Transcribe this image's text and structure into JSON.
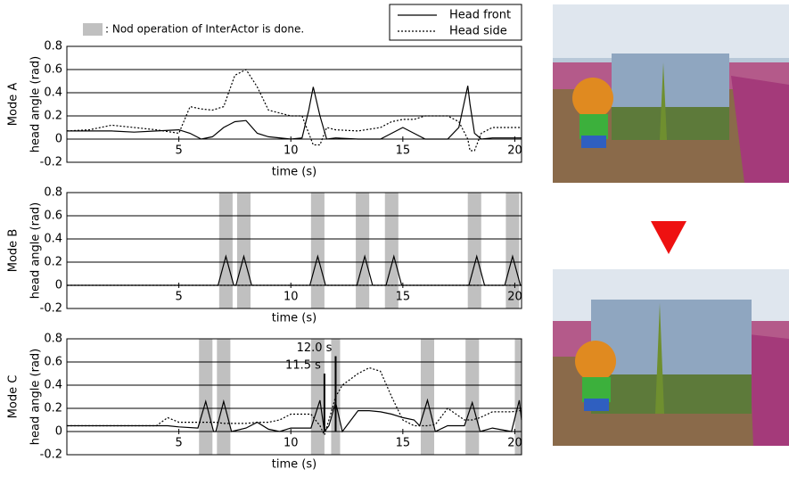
{
  "legend_note": ": Nod operation of InterActor is done.",
  "chart_data": [
    {
      "type": "line",
      "mode_label": "Mode A",
      "ylabel": "head angle (rad)",
      "xlabel": "time (s)",
      "xlim": [
        0,
        20.3
      ],
      "xticks": [
        5,
        10,
        15,
        20
      ],
      "ylim": [
        -0.2,
        0.8
      ],
      "yticks": [
        -0.2,
        0,
        0.2,
        0.4,
        0.6,
        0.8
      ],
      "x": [
        0,
        1,
        2,
        3,
        4,
        5,
        5.5,
        6,
        6.5,
        7,
        7.5,
        8,
        8.5,
        9,
        10,
        10.5,
        10.8,
        11,
        11.3,
        11.6,
        12,
        13,
        14,
        14.5,
        15,
        15.5,
        16,
        17,
        17.5,
        17.9,
        18,
        18.2,
        18.5,
        19,
        20,
        20.3
      ],
      "series": [
        {
          "name": "Head front",
          "color": "#000000",
          "dash": "solid",
          "values": [
            0.07,
            0.07,
            0.07,
            0.06,
            0.07,
            0.08,
            0.05,
            0.0,
            0.02,
            0.1,
            0.15,
            0.16,
            0.05,
            0.02,
            0.0,
            0.01,
            0.25,
            0.45,
            0.2,
            0.0,
            0.01,
            0.0,
            0.0,
            0.05,
            0.1,
            0.05,
            0.0,
            0.0,
            0.1,
            0.46,
            0.3,
            0.05,
            0.0,
            0.01,
            0.01,
            0.01
          ]
        },
        {
          "name": "Head side",
          "color": "#000000",
          "dash": "dotted",
          "values": [
            0.07,
            0.08,
            0.12,
            0.1,
            0.08,
            0.05,
            0.28,
            0.26,
            0.25,
            0.28,
            0.55,
            0.6,
            0.45,
            0.25,
            0.2,
            0.2,
            0.05,
            -0.05,
            -0.05,
            0.1,
            0.08,
            0.07,
            0.1,
            0.15,
            0.17,
            0.17,
            0.2,
            0.2,
            0.15,
            0.0,
            -0.1,
            -0.1,
            0.05,
            0.1,
            0.1,
            0.1
          ]
        }
      ]
    },
    {
      "type": "line",
      "mode_label": "Mode B",
      "ylabel": "head angle (rad)",
      "xlabel": "time (s)",
      "xlim": [
        0,
        20.3
      ],
      "xticks": [
        5,
        10,
        15,
        20
      ],
      "ylim": [
        -0.2,
        0.8
      ],
      "yticks": [
        -0.2,
        0,
        0.2,
        0.4,
        0.6,
        0.8
      ],
      "nod_intervals": [
        [
          6.8,
          7.4
        ],
        [
          7.6,
          8.2
        ],
        [
          10.9,
          11.5
        ],
        [
          12.9,
          13.5
        ],
        [
          14.2,
          14.8
        ],
        [
          17.9,
          18.5
        ],
        [
          19.6,
          20.2
        ]
      ],
      "x": [
        0,
        6.75,
        7.1,
        7.45,
        7.55,
        7.9,
        8.25,
        10.85,
        11.2,
        11.55,
        12.95,
        13.3,
        13.65,
        14.25,
        14.6,
        14.95,
        17.95,
        18.3,
        18.65,
        19.55,
        19.9,
        20.25,
        20.3
      ],
      "series": [
        {
          "name": "Head front",
          "color": "#000000",
          "dash": "solid",
          "values": [
            0,
            0,
            0.25,
            0,
            0,
            0.25,
            0,
            0,
            0.25,
            0,
            0,
            0.25,
            0,
            0,
            0.25,
            0,
            0,
            0.25,
            0,
            0,
            0.25,
            0,
            0
          ]
        },
        {
          "name": "Head side",
          "color": "#000000",
          "dash": "dotted",
          "values": [
            0,
            0,
            0,
            0,
            0,
            0,
            0,
            0,
            0,
            0,
            0,
            0,
            0,
            0,
            0,
            0,
            0,
            0,
            0,
            0,
            0,
            0,
            0
          ]
        }
      ]
    },
    {
      "type": "line",
      "mode_label": "Mode C",
      "ylabel": "head angle (rad)",
      "xlabel": "time (s)",
      "xlim": [
        0,
        20.3
      ],
      "xticks": [
        5,
        10,
        15,
        20
      ],
      "ylim": [
        -0.2,
        0.8
      ],
      "yticks": [
        -0.2,
        0,
        0.2,
        0.4,
        0.6,
        0.8
      ],
      "nod_intervals": [
        [
          5.9,
          6.5
        ],
        [
          6.7,
          7.3
        ],
        [
          10.9,
          11.5
        ],
        [
          11.8,
          12.2
        ],
        [
          15.8,
          16.4
        ],
        [
          17.8,
          18.4
        ],
        [
          20.0,
          20.3
        ]
      ],
      "annotations": [
        {
          "text": "12.0 s",
          "x": 12.0,
          "y": 0.65
        },
        {
          "text": "11.5 s",
          "x": 11.5,
          "y": 0.5
        }
      ],
      "x": [
        0,
        2,
        4,
        4.5,
        5,
        5.85,
        6.2,
        6.55,
        6.65,
        7.0,
        7.35,
        8,
        8.5,
        9,
        9.5,
        10,
        10.9,
        11.3,
        11.5,
        11.7,
        12.0,
        12.3,
        13,
        13.5,
        14,
        14.5,
        15,
        15.5,
        15.75,
        16.1,
        16.45,
        17,
        17.75,
        18.1,
        18.45,
        19,
        19.85,
        20.2,
        20.3
      ],
      "series": [
        {
          "name": "Head front",
          "color": "#000000",
          "dash": "solid",
          "values": [
            0.05,
            0.05,
            0.05,
            0.05,
            0.04,
            0.03,
            0.26,
            0.0,
            0.0,
            0.26,
            0.0,
            0.03,
            0.08,
            0.02,
            0.0,
            0.03,
            0.03,
            0.27,
            0.0,
            0.05,
            0.25,
            0.0,
            0.18,
            0.18,
            0.17,
            0.15,
            0.12,
            0.1,
            0.05,
            0.27,
            0.0,
            0.05,
            0.05,
            0.25,
            0.0,
            0.03,
            0.0,
            0.27,
            0.1
          ]
        },
        {
          "name": "Head side",
          "color": "#000000",
          "dash": "dotted",
          "values": [
            0.05,
            0.05,
            0.05,
            0.12,
            0.08,
            0.08,
            0.08,
            0.08,
            0.08,
            0.07,
            0.07,
            0.07,
            0.08,
            0.08,
            0.1,
            0.15,
            0.15,
            0.05,
            -0.03,
            0.1,
            0.3,
            0.4,
            0.5,
            0.55,
            0.52,
            0.3,
            0.1,
            0.05,
            0.05,
            0.05,
            0.06,
            0.2,
            0.1,
            0.1,
            0.12,
            0.17,
            0.17,
            0.18,
            0.18
          ]
        }
      ]
    }
  ]
}
